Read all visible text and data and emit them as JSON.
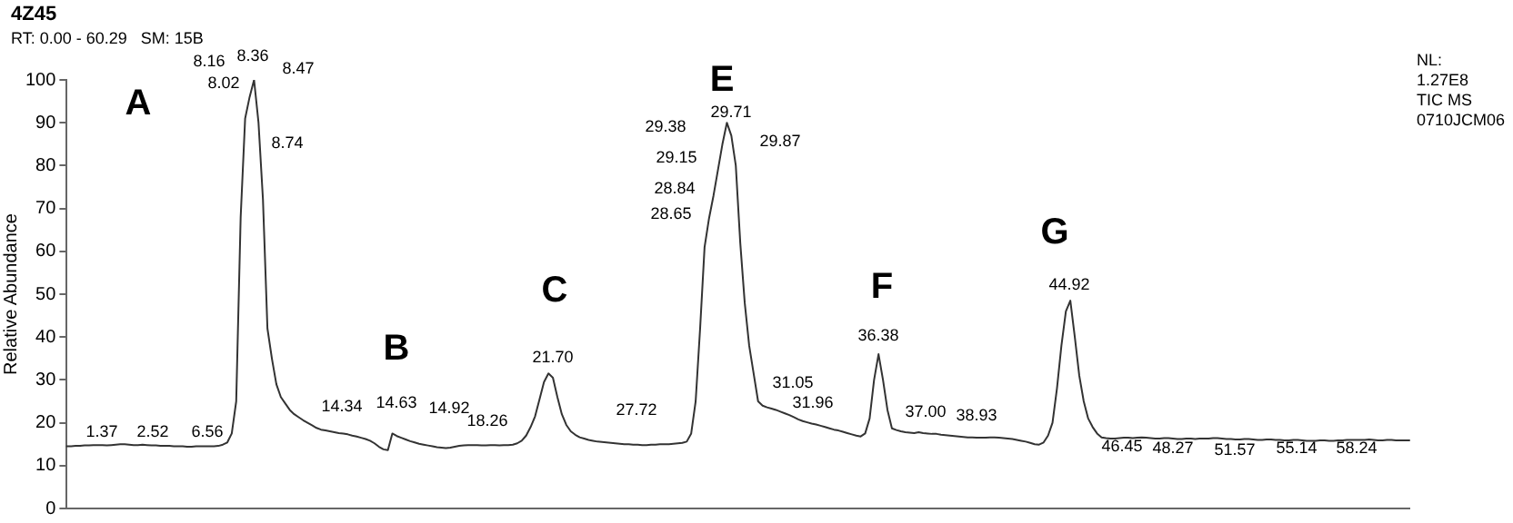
{
  "chart_data": {
    "type": "line",
    "title": "4Z45",
    "subtitle": "RT: 0.00 - 60.29   SM: 15B",
    "ylabel": "Relative Abundance",
    "categories": [
      null,
      null,
      null,
      null,
      null,
      null,
      null,
      null,
      null,
      null,
      null,
      null,
      null,
      null,
      null,
      null,
      null,
      null,
      null,
      null,
      null,
      null,
      null,
      null,
      null,
      null,
      null,
      null,
      null,
      null,
      null,
      null,
      null,
      null,
      null,
      null,
      null,
      null,
      null,
      null,
      null,
      null,
      null,
      null,
      null,
      null,
      null,
      null,
      null,
      null,
      null,
      null,
      null,
      null,
      null,
      null,
      null,
      null,
      null,
      null,
      null,
      null,
      null,
      null,
      null,
      null,
      null,
      null,
      null,
      null,
      null,
      null,
      null,
      null,
      null,
      null,
      null,
      null,
      null,
      null,
      null,
      null,
      null,
      null,
      null,
      null,
      null,
      null,
      null,
      null,
      null,
      null,
      null,
      null,
      null,
      null,
      null,
      null,
      null,
      null,
      null,
      null,
      null,
      null,
      null,
      null,
      null,
      null,
      null,
      null,
      null,
      null,
      null,
      null,
      null,
      null,
      null,
      null,
      null,
      null,
      null,
      null,
      null,
      null,
      null,
      null,
      null,
      null,
      null,
      null,
      null,
      null,
      null,
      null,
      null,
      null,
      null,
      null,
      null,
      null,
      null,
      null,
      null,
      null,
      null,
      null,
      null,
      null,
      null,
      null,
      null,
      null,
      null,
      null,
      null,
      null,
      null,
      null,
      null,
      null,
      null,
      null,
      null,
      null,
      null,
      null,
      null,
      null,
      null,
      null,
      null,
      null,
      null,
      null,
      null,
      null,
      null,
      null,
      null,
      null,
      null,
      null,
      null,
      null,
      null,
      null,
      null,
      null,
      null,
      null,
      null,
      null,
      null,
      null,
      null,
      null,
      null,
      null,
      null,
      null,
      null,
      null,
      null,
      null,
      null,
      null,
      null,
      null,
      null,
      null,
      null,
      null,
      null,
      null,
      null,
      null,
      null,
      null,
      null,
      null,
      null,
      null,
      null,
      null,
      null,
      null,
      null,
      null,
      null,
      null,
      null,
      null,
      null,
      null,
      null,
      null,
      null,
      null,
      null,
      null,
      null,
      null,
      null,
      null,
      null,
      null,
      null,
      null,
      null,
      null,
      null,
      null,
      null,
      null,
      null,
      null,
      null,
      null,
      null,
      null,
      null,
      null,
      null,
      null,
      null,
      null,
      null,
      null,
      null,
      null,
      null,
      null,
      null,
      null,
      null,
      null,
      null,
      null,
      null,
      null,
      null,
      null,
      null,
      null,
      null,
      null,
      null,
      null,
      null,
      null,
      null,
      null,
      null,
      null,
      null,
      null,
      null,
      null,
      null,
      null,
      null,
      null
    ],
    "series": [
      {
        "color": "#333333",
        "values": [
          14.5,
          14.5,
          14.6,
          14.6,
          14.7,
          14.7,
          14.8,
          14.8,
          14.8,
          14.7,
          14.8,
          14.9,
          15.0,
          15.0,
          14.9,
          14.8,
          14.8,
          14.9,
          14.8,
          14.7,
          14.7,
          14.6,
          14.6,
          14.6,
          14.5,
          14.5,
          14.5,
          14.4,
          14.4,
          14.5,
          14.5,
          14.5,
          14.5,
          14.5,
          14.6,
          14.9,
          15.4,
          17.5,
          25,
          68,
          91,
          96,
          100,
          90,
          72,
          42,
          35,
          29,
          26,
          24.5,
          23,
          22,
          21.3,
          20.6,
          20,
          19.4,
          18.8,
          18.4,
          18.2,
          18,
          17.8,
          17.6,
          17.5,
          17.3,
          17,
          16.8,
          16.5,
          16.2,
          15.8,
          15.2,
          14.4,
          13.8,
          13.6,
          17.5,
          16.9,
          16.5,
          16.1,
          15.7,
          15.4,
          15.1,
          14.9,
          14.7,
          14.5,
          14.3,
          14.2,
          14.1,
          14.2,
          14.4,
          14.6,
          14.7,
          14.8,
          14.8,
          14.8,
          14.7,
          14.7,
          14.8,
          14.8,
          14.7,
          14.8,
          14.8,
          14.9,
          15.2,
          15.8,
          17,
          19,
          21.5,
          25.5,
          29.5,
          31.5,
          30.5,
          26,
          22,
          19.5,
          18,
          17.2,
          16.6,
          16.3,
          16,
          15.8,
          15.6,
          15.5,
          15.4,
          15.3,
          15.2,
          15.1,
          15.0,
          15.0,
          14.9,
          14.9,
          14.8,
          14.8,
          14.9,
          14.9,
          15.0,
          15.0,
          15.0,
          15.1,
          15.2,
          15.3,
          15.6,
          17.5,
          25,
          42,
          61,
          67.7,
          73,
          79,
          85,
          90,
          87,
          80,
          62,
          48,
          38,
          31.5,
          25,
          24,
          23.6,
          23.3,
          23,
          22.6,
          22.2,
          21.8,
          21.3,
          20.8,
          20.4,
          20.1,
          19.8,
          19.6,
          19.3,
          19,
          18.7,
          18.4,
          18.2,
          17.9,
          17.6,
          17.3,
          17,
          16.8,
          17.5,
          21,
          30,
          36,
          30,
          23,
          18.7,
          18.3,
          18.0,
          17.8,
          17.7,
          17.6,
          17.8,
          17.6,
          17.5,
          17.4,
          17.4,
          17.2,
          17.1,
          17,
          16.9,
          16.8,
          16.7,
          16.6,
          16.6,
          16.5,
          16.5,
          16.5,
          16.6,
          16.6,
          16.5,
          16.4,
          16.3,
          16.2,
          16.0,
          15.8,
          15.6,
          15.3,
          15.0,
          14.9,
          15.4,
          17,
          20,
          28,
          38,
          46,
          48.5,
          40,
          31,
          25,
          21,
          19,
          17.5,
          16.6,
          16.4,
          16.3,
          16.3,
          16.4,
          16.5,
          16.5,
          16.4,
          16.5,
          16.6,
          16.5,
          16.4,
          16.3,
          16.3,
          16.4,
          16.4,
          16.3,
          16.2,
          16.2,
          16.3,
          16.3,
          16.2,
          16.3,
          16.3,
          16.3,
          16.4,
          16.4,
          16.3,
          16.2,
          16.2,
          16.1,
          16.1,
          16.2,
          16.2,
          16.1,
          16.0,
          16.0,
          16.1,
          16.1,
          16.0,
          16.0,
          15.9,
          15.9,
          16.0,
          16.0,
          15.9,
          15.8,
          15.8,
          15.8,
          15.9,
          15.9,
          15.8,
          15.8,
          15.9,
          15.9,
          16.0,
          16.0,
          16.0,
          16.0,
          16.0,
          16.1,
          16.0,
          15.9,
          15.9,
          16.0,
          16.0,
          15.9,
          15.9,
          15.9,
          15.9
        ]
      }
    ],
    "ylim": [
      0,
      100
    ],
    "yticks": [
      0,
      10,
      20,
      30,
      40,
      50,
      60,
      70,
      80,
      90,
      100
    ],
    "tick_labels": "y",
    "marker": "none",
    "line_style": "solid",
    "annotations": [
      "A",
      "B",
      "C",
      "E",
      "F",
      "G",
      "1.37",
      "2.52",
      "6.56",
      "8.16",
      "8.36",
      "8.47",
      "8.02",
      "8.74",
      "14.34",
      "14.63",
      "14.92",
      "18.26",
      "21.70",
      "27.72",
      "29.38",
      "29.71",
      "29.87",
      "29.15",
      "28.84",
      "28.65",
      "31.05",
      "31.96",
      "36.38",
      "37.00",
      "38.93",
      "44.92",
      "46.45",
      "48.27",
      "51.57",
      "55.14",
      "58.24",
      "NL:\n1.27E8\nTIC  MS\n0710JCM06"
    ]
  }
}
